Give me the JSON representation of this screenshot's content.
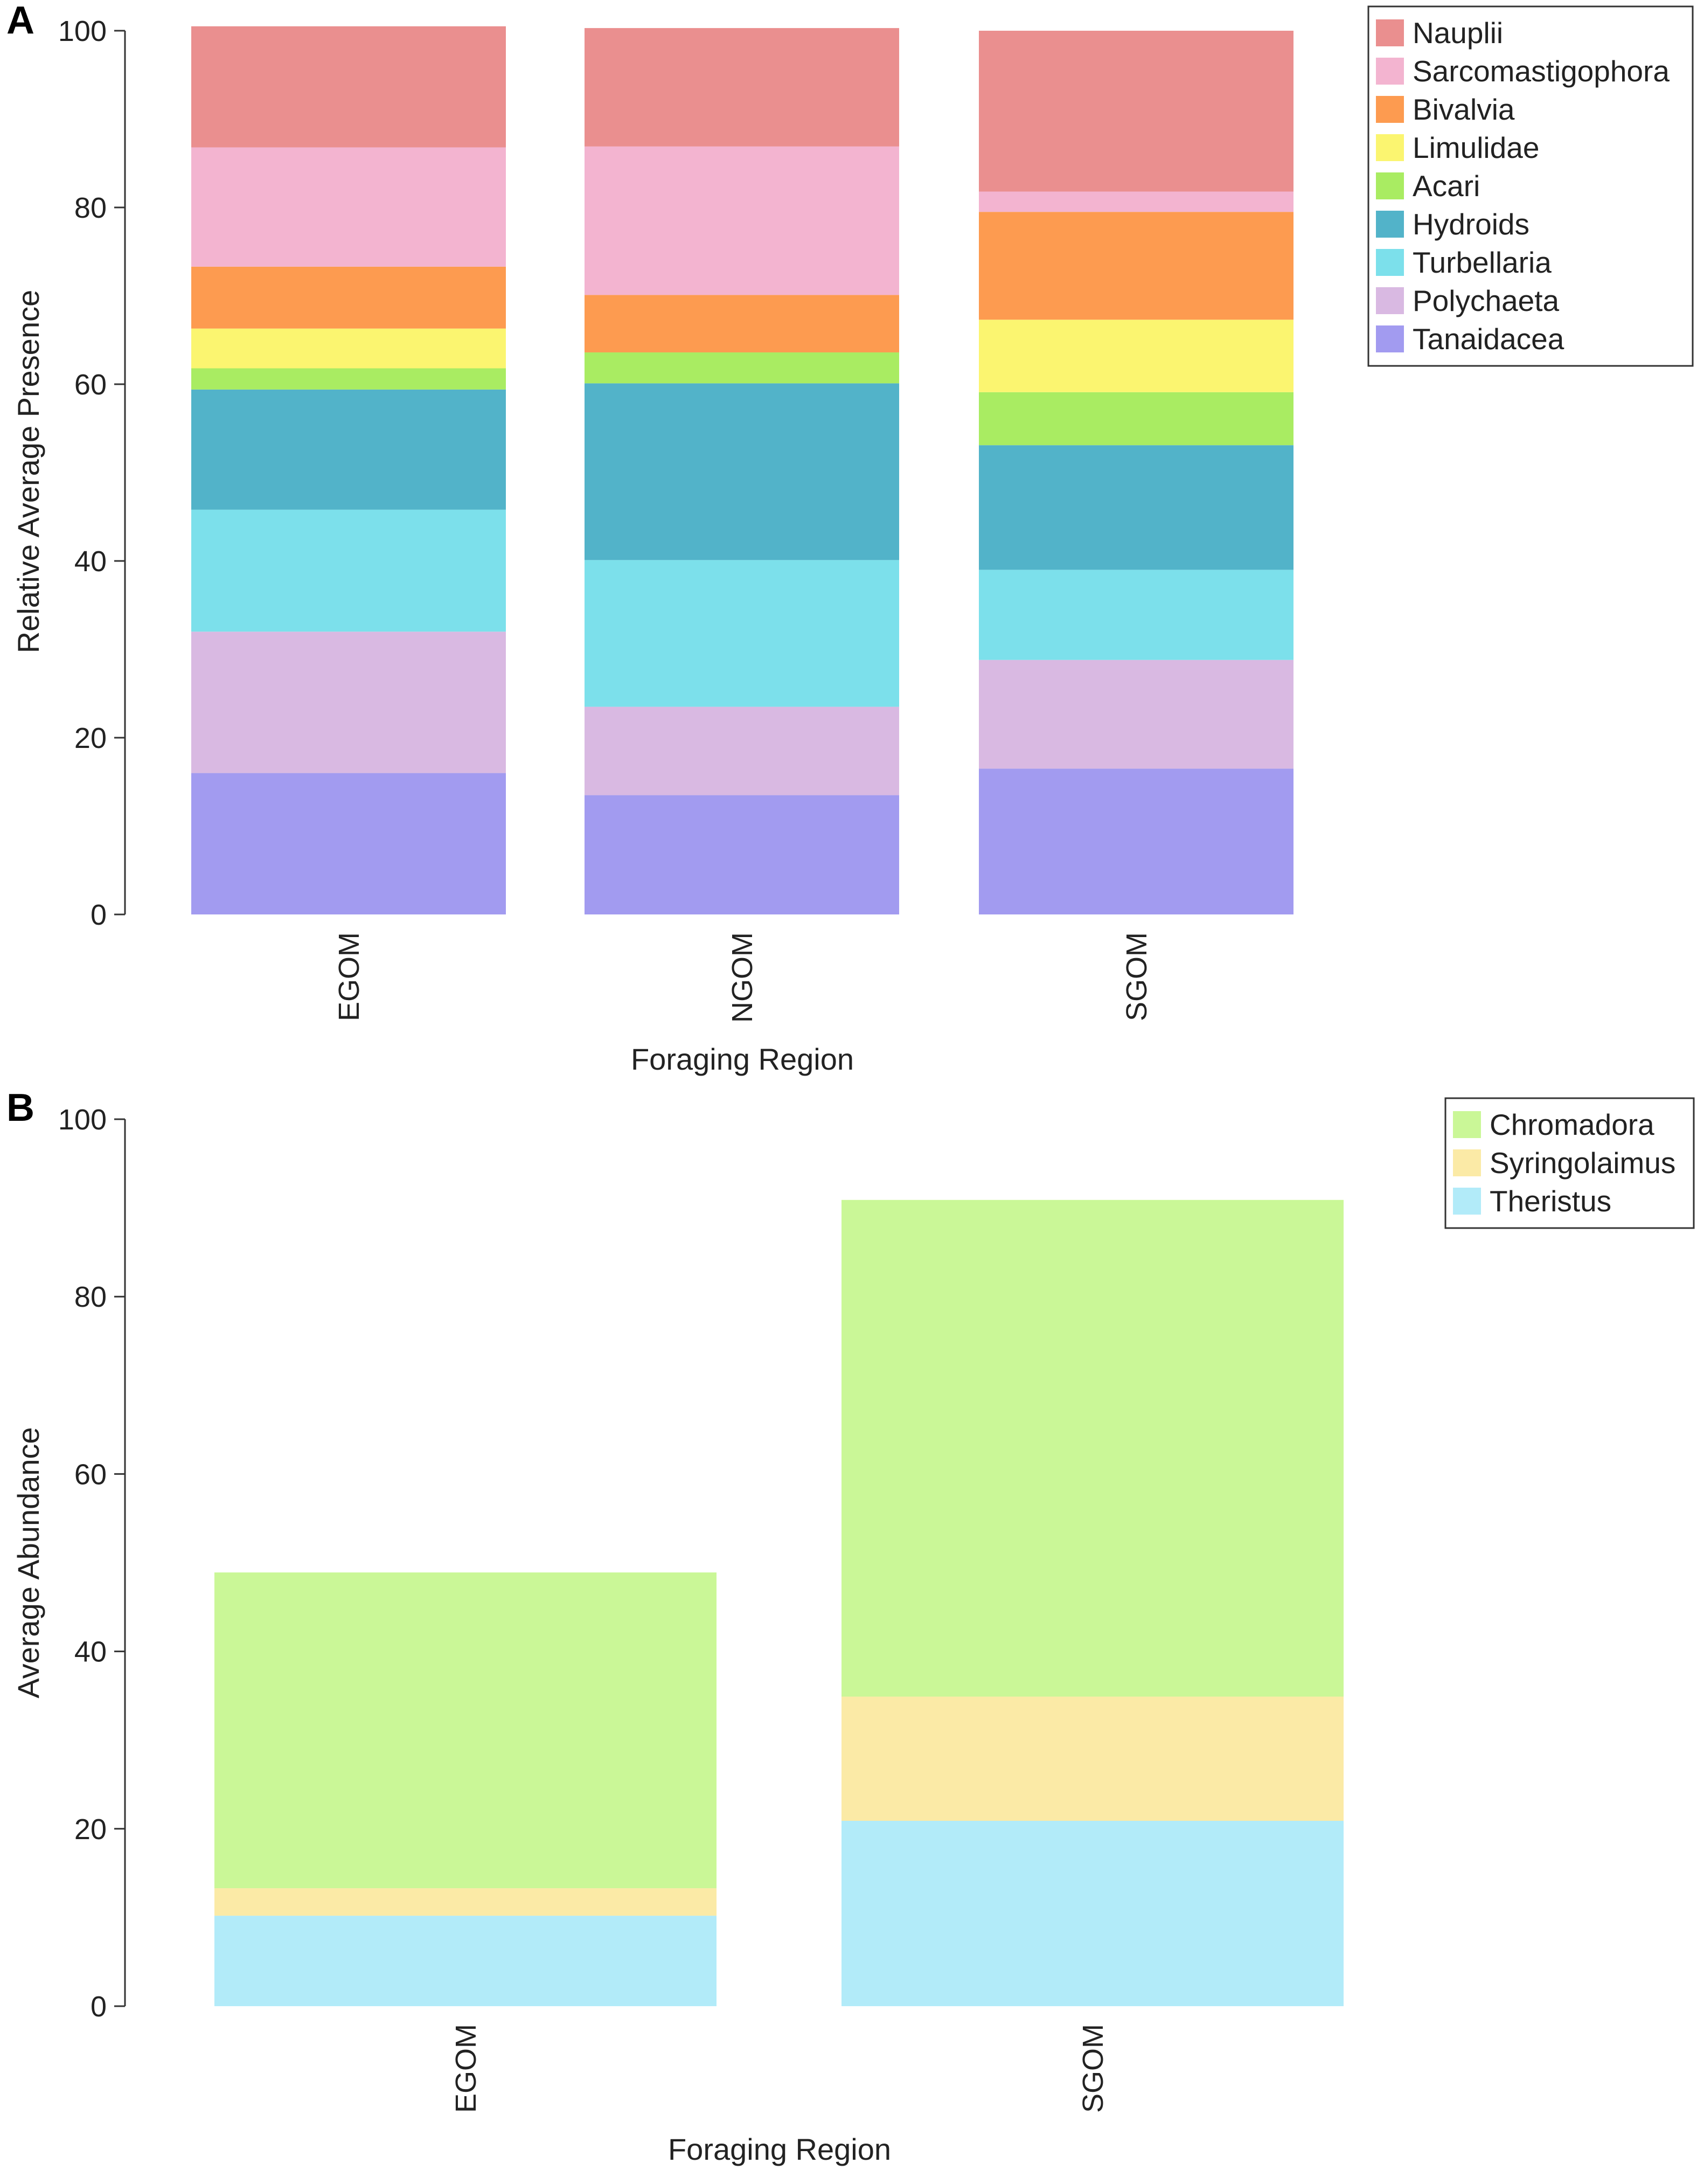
{
  "chart_data": [
    {
      "panel": "A",
      "type": "bar",
      "stacked": true,
      "title": "",
      "xlabel": "Foraging Region",
      "ylabel": "Relative Average Presence",
      "ylim": [
        0,
        100
      ],
      "yticks": [
        "0",
        "20",
        "40",
        "60",
        "80",
        "100"
      ],
      "categories": [
        "EGOM",
        "NGOM",
        "SGOM"
      ],
      "legend_position": "top-right",
      "series": [
        {
          "name": "Tanaidacea",
          "color": "#a29bf0",
          "values": [
            16,
            13.5,
            16.5
          ]
        },
        {
          "name": "Polychaeta",
          "color": "#d9b9e2",
          "values": [
            16,
            10,
            12.3
          ]
        },
        {
          "name": "Turbellaria",
          "color": "#7ce0eb",
          "values": [
            13.8,
            16.6,
            10.2
          ]
        },
        {
          "name": "Hydroids",
          "color": "#52b3c9",
          "values": [
            13.6,
            20,
            14.1
          ]
        },
        {
          "name": "Acari",
          "color": "#a9ec62",
          "values": [
            2.4,
            3.5,
            6
          ]
        },
        {
          "name": "Limulidae",
          "color": "#fbf570",
          "values": [
            4.5,
            0,
            8.2
          ]
        },
        {
          "name": "Bivalvia",
          "color": "#fd9b50",
          "values": [
            7,
            6.5,
            12.2
          ]
        },
        {
          "name": "Sarcomastigophora",
          "color": "#f3b4d0",
          "values": [
            13.5,
            16.8,
            2.3
          ]
        },
        {
          "name": "Nauplii",
          "color": "#ea8f8f",
          "values": [
            13.7,
            13.4,
            18.2
          ]
        }
      ],
      "legend_order": [
        "Nauplii",
        "Sarcomastigophora",
        "Bivalvia",
        "Limulidae",
        "Acari",
        "Hydroids",
        "Turbellaria",
        "Polychaeta",
        "Tanaidacea"
      ]
    },
    {
      "panel": "B",
      "type": "bar",
      "stacked": true,
      "title": "",
      "xlabel": "Foraging Region",
      "ylabel": "Average Abundance",
      "ylim": [
        0,
        100
      ],
      "yticks": [
        "0",
        "20",
        "40",
        "60",
        "80",
        "100"
      ],
      "categories": [
        "EGOM",
        "SGOM"
      ],
      "legend_position": "top-right",
      "series": [
        {
          "name": "Theristus",
          "color": "#b2ebf9",
          "values": [
            10.2,
            20.9
          ]
        },
        {
          "name": "Syringolaimus",
          "color": "#fbeaa6",
          "values": [
            3.1,
            14
          ]
        },
        {
          "name": "Chromadora",
          "color": "#caf797",
          "values": [
            35.6,
            56
          ]
        }
      ],
      "legend_order": [
        "Chromadora",
        "Syringolaimus",
        "Theristus"
      ]
    }
  ]
}
